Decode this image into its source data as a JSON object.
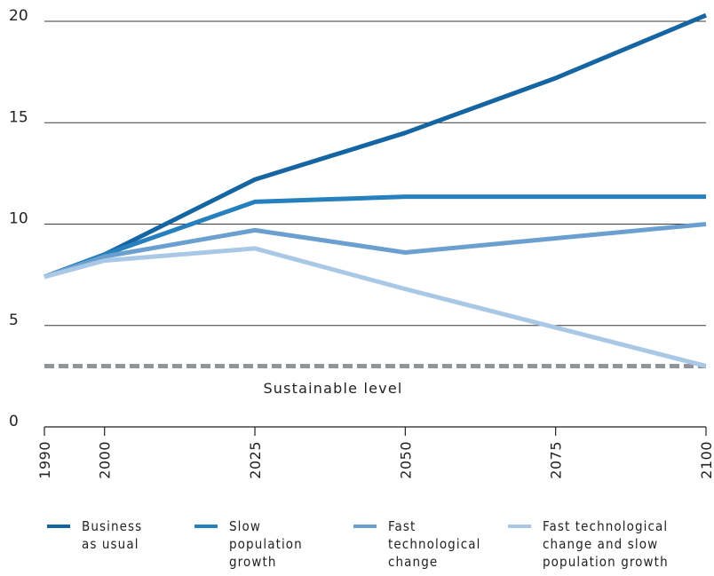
{
  "chart_data": {
    "type": "line",
    "title": "",
    "xlabel": "",
    "ylabel": "",
    "x": [
      1990,
      2000,
      2025,
      2050,
      2075,
      2100
    ],
    "x_tick_labels": [
      "1990",
      "2000",
      "2025",
      "2050",
      "2075",
      "2100"
    ],
    "y_tick_labels": [
      "0",
      "5",
      "10",
      "15",
      "20"
    ],
    "xlim": [
      1990,
      2100
    ],
    "ylim": [
      0,
      20
    ],
    "grid": true,
    "legend_position": "bottom",
    "series": [
      {
        "name": "Business\nas usual",
        "color": "#1565a3",
        "values": [
          7.4,
          8.5,
          12.2,
          14.5,
          17.2,
          20.3
        ]
      },
      {
        "name": "Slow\npopulation\ngrowth",
        "color": "#2680bd",
        "values": [
          7.4,
          8.5,
          11.1,
          11.35,
          11.35,
          11.35
        ]
      },
      {
        "name": "Fast\ntechnological\nchange",
        "color": "#6b9fcf",
        "values": [
          7.4,
          8.4,
          9.7,
          8.6,
          9.3,
          10.0
        ]
      },
      {
        "name": "Fast technological\nchange and slow\npopulation growth",
        "color": "#a9c8e6",
        "values": [
          7.4,
          8.2,
          8.8,
          6.8,
          4.9,
          3.0
        ]
      }
    ],
    "reference_line": {
      "label": "Sustainable level",
      "value": 3.0,
      "color": "#8f9599"
    }
  }
}
